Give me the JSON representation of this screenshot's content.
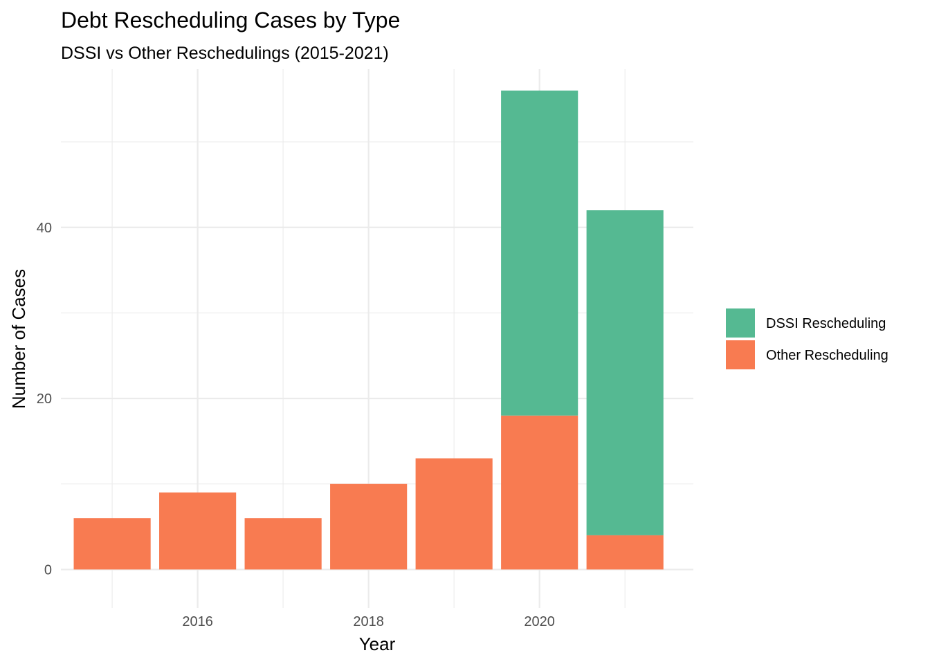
{
  "chart_data": {
    "type": "bar",
    "stacked": true,
    "title": "Debt Rescheduling Cases by Type",
    "subtitle": "DSSI vs Other Reschedulings (2015-2021)",
    "xlabel": "Year",
    "ylabel": "Number of Cases",
    "categories": [
      2015,
      2016,
      2017,
      2018,
      2019,
      2020,
      2021
    ],
    "x_ticks": [
      "2016",
      "2018",
      "2020"
    ],
    "y_ticks": [
      "0",
      "20",
      "40"
    ],
    "ylim": [
      -4.5,
      58.5
    ],
    "xlim": [
      2014.4,
      2021.8
    ],
    "grid": true,
    "legend_position": "right",
    "series": [
      {
        "name": "Other Rescheduling",
        "color": "#F87B51",
        "values": [
          6,
          9,
          6,
          10,
          13,
          18,
          4
        ]
      },
      {
        "name": "DSSI Rescheduling",
        "color": "#55B992",
        "values": [
          0,
          0,
          0,
          0,
          0,
          38,
          38
        ]
      }
    ],
    "legend": [
      {
        "name": "DSSI Rescheduling",
        "color": "#55B992"
      },
      {
        "name": "Other Rescheduling",
        "color": "#F87B51"
      }
    ]
  }
}
